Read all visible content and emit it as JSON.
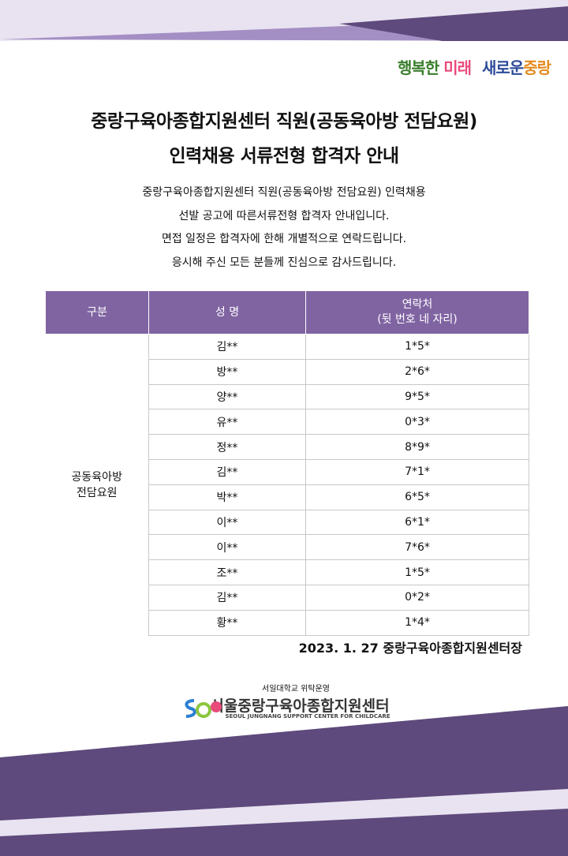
{
  "slogan": [
    "행복한",
    "미래",
    "새로운",
    "중랑"
  ],
  "title": [
    "중랑구육아종합지원센터 직원(공동육아방 전담요원)",
    "인력채용 서류전형 합격자 안내"
  ],
  "intro": [
    "중랑구육아종합지원센터 직원(공동육아방 전담요원) 인력채용",
    "선발 공고에 따른서류전형 합격자 안내입니다.",
    "면접 일정은 합격자에 한해 개별적으로 연락드립니다.",
    "응시해 주신 모든 분들께 진심으로 감사드립니다."
  ],
  "table": {
    "headers": [
      "구분",
      "성  명",
      [
        "연락처",
        "(뒷 번호  네 자리)"
      ]
    ],
    "group": [
      "공동육아방",
      "전담요원"
    ],
    "rows": [
      [
        "김**",
        "1*5*"
      ],
      [
        "방**",
        "2*6*"
      ],
      [
        "양**",
        "9*5*"
      ],
      [
        "유**",
        "0*3*"
      ],
      [
        "정**",
        "8*9*"
      ],
      [
        "김**",
        "7*1*"
      ],
      [
        "박**",
        "6*5*"
      ],
      [
        "이**",
        "6*1*"
      ],
      [
        "이**",
        "7*6*"
      ],
      [
        "조**",
        "1*5*"
      ],
      [
        "김**",
        "0*2*"
      ],
      [
        "황**",
        "1*4*"
      ]
    ]
  },
  "signature": "2023. 1. 27 중랑구육아종합지원센터장",
  "footer": {
    "operator": "서일대학교 위탁운영",
    "name": "서울중랑구육아종합지원센터",
    "english": "SEOUL JUNGNANG SUPPORT CENTER FOR CHILDCARE"
  }
}
